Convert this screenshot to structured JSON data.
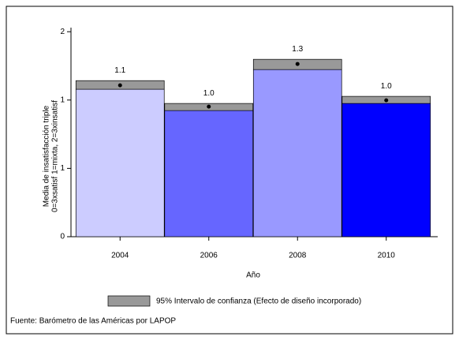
{
  "chart_data": {
    "type": "bar",
    "y_label": [
      "Media de insatisfacción triple",
      "0=3xsatisf 1=mixta, 2=3xinsatisf"
    ],
    "x_label": "Año",
    "categories": [
      "2004",
      "2006",
      "2008",
      "2010"
    ],
    "values": [
      1.108,
      0.952,
      1.264,
      0.998
    ],
    "value_labels": [
      "1.1",
      "1.0",
      "1.3",
      "1.0"
    ],
    "ci_low": [
      1.079,
      0.923,
      1.223,
      0.975
    ],
    "ci_high": [
      1.142,
      0.975,
      1.298,
      1.027
    ],
    "colors": [
      "#ccccff",
      "#6666ff",
      "#9999ff",
      "#0000ff"
    ],
    "ci_color": "#999999",
    "ylim": [
      0,
      1.53
    ],
    "yticks": [
      {
        "value": 0,
        "label": "0"
      },
      {
        "value": 0.5,
        "label": "1"
      },
      {
        "value": 1,
        "label": "1"
      },
      {
        "value": 1.5,
        "label": "2"
      }
    ],
    "legend": "95% Intervalo de confianza (Efecto de diseño incorporado)",
    "source": "Fuente: Barómetro de las Américas por LAPOP"
  }
}
